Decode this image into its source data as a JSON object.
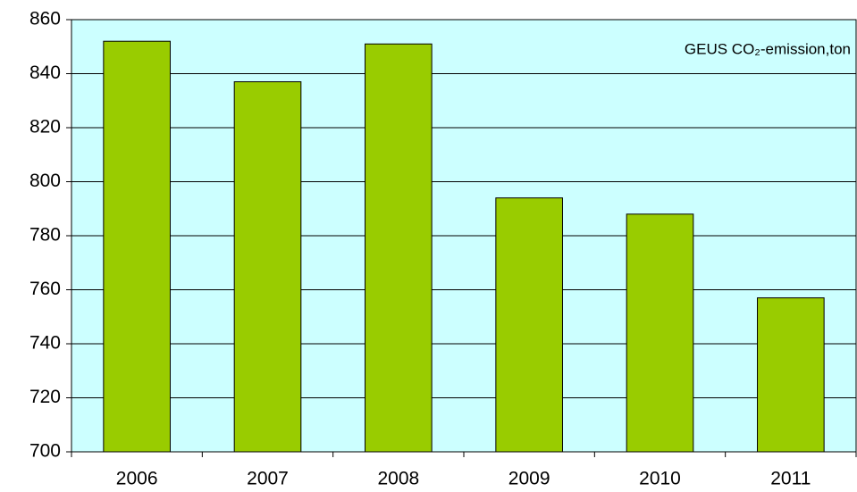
{
  "chart_data": {
    "type": "bar",
    "title": "GEUS CO₂-emission,ton",
    "categories": [
      "2006",
      "2007",
      "2008",
      "2009",
      "2010",
      "2011"
    ],
    "values": [
      852,
      837,
      851,
      794,
      788,
      757
    ],
    "color": "#99cc00",
    "background": "#ccffff",
    "ylim": [
      700,
      860
    ],
    "yticks": [
      700,
      720,
      740,
      760,
      780,
      800,
      820,
      840,
      860
    ],
    "grid": true
  }
}
